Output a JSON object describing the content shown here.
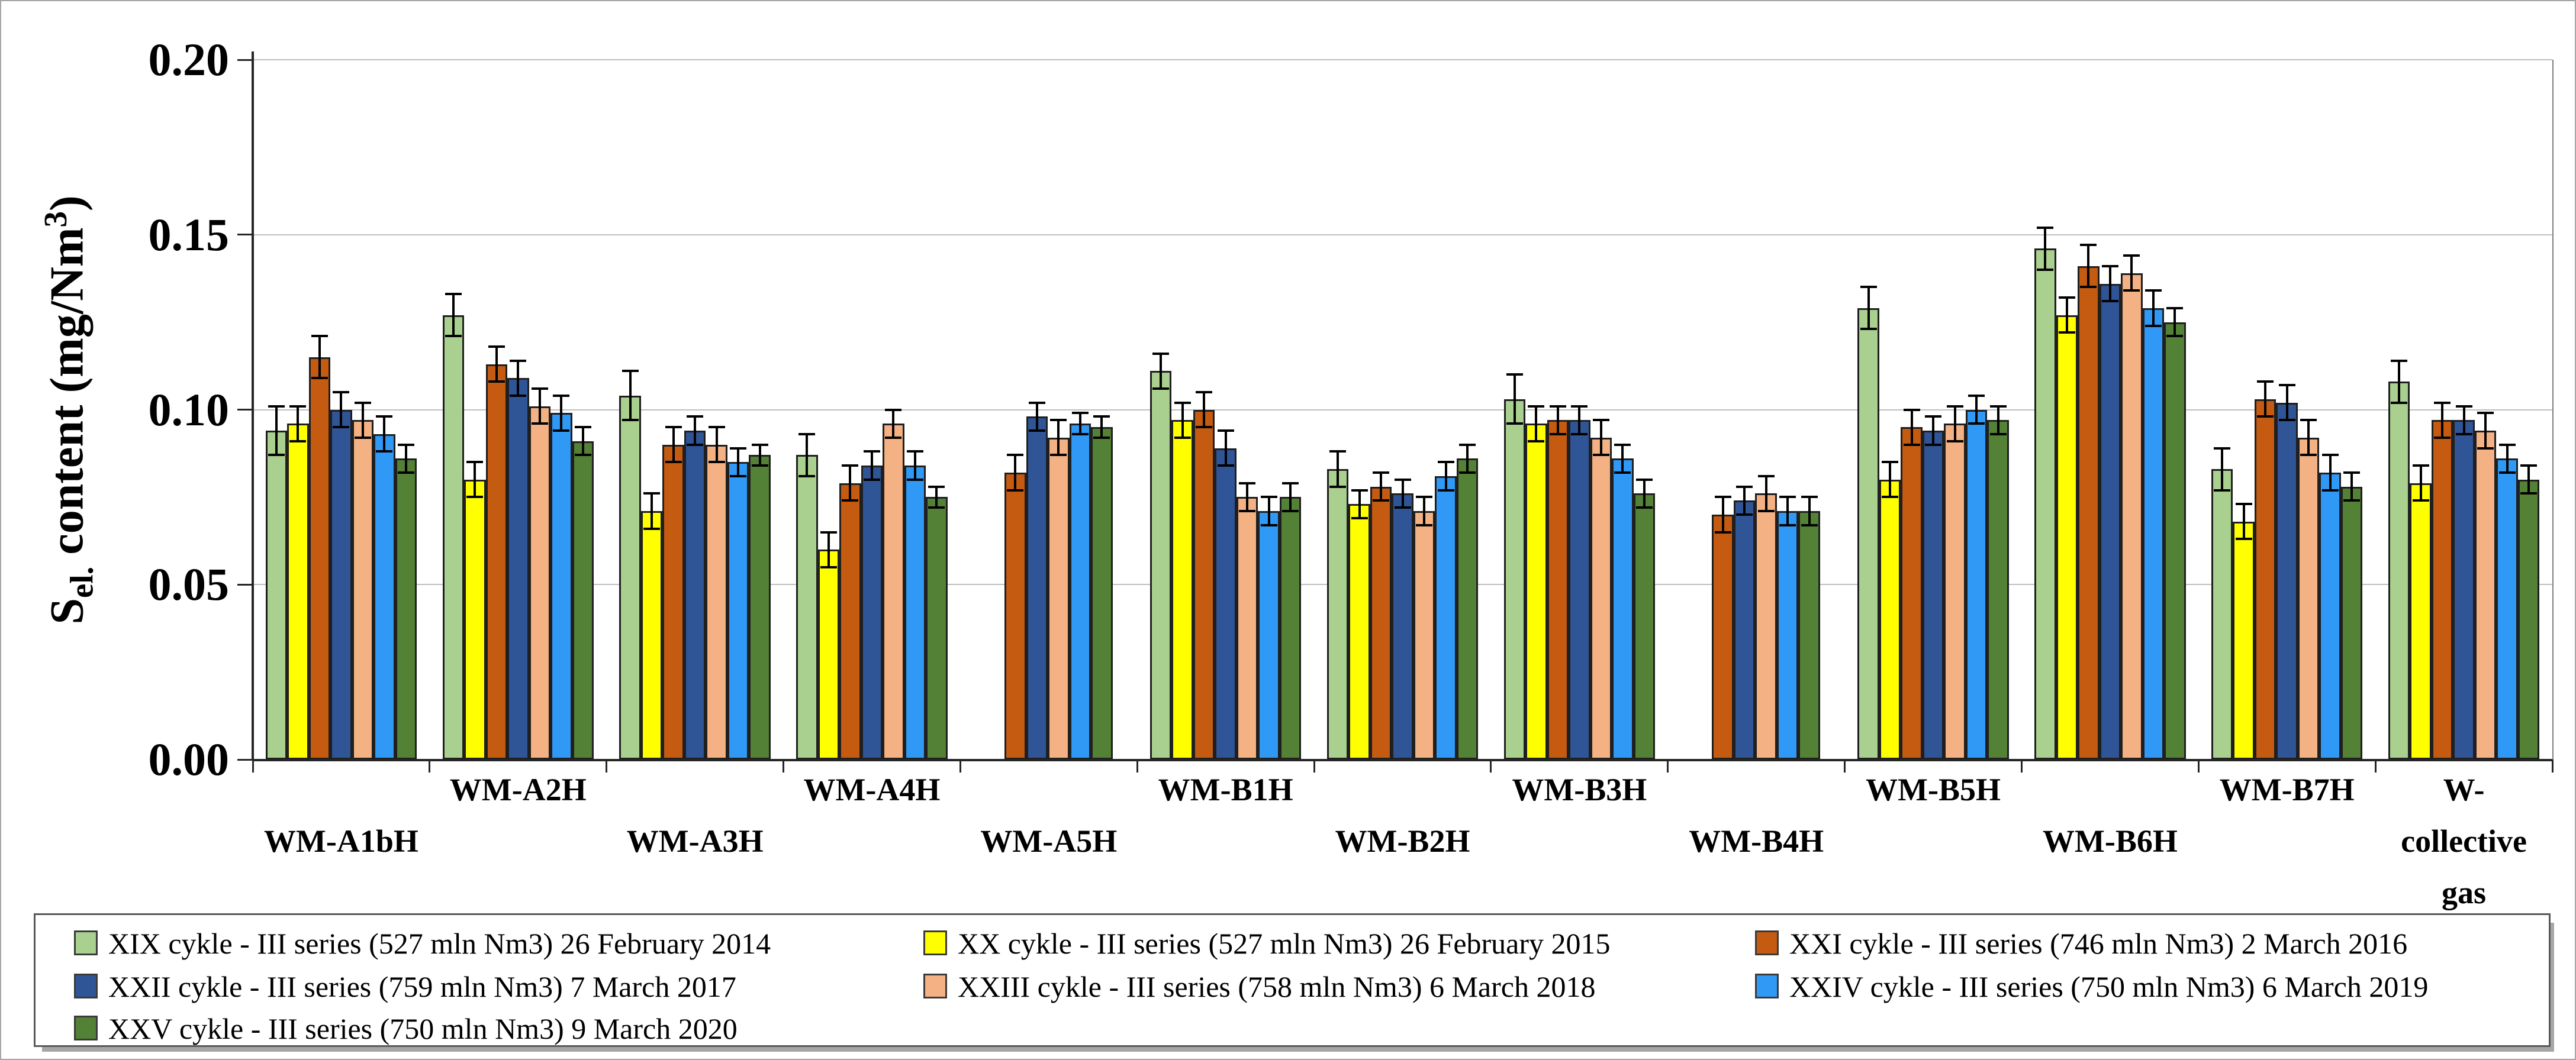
{
  "y_axis_title": {
    "s": "S",
    "sub": "el.",
    "mid": " content (mg/Nm",
    "sup": "3",
    "end": ")"
  },
  "chart_data": {
    "type": "bar",
    "title": "",
    "xlabel": "",
    "ylabel": "S el. content (mg/Nm3)",
    "ylim": [
      0,
      0.2
    ],
    "ytick_step": 0.05,
    "ytick_labels": [
      "0.00",
      "0.05",
      "0.10",
      "0.15",
      "0.20"
    ],
    "grid": true,
    "legend_position": "bottom",
    "error_bars": true,
    "categories": [
      {
        "lines": [
          "WM-A1bH"
        ],
        "row": 1
      },
      {
        "lines": [
          "WM-A2H"
        ],
        "row": 0
      },
      {
        "lines": [
          "WM-A3H"
        ],
        "row": 1
      },
      {
        "lines": [
          "WM-A4H"
        ],
        "row": 0
      },
      {
        "lines": [
          "WM-A5H"
        ],
        "row": 1
      },
      {
        "lines": [
          "WM-B1H"
        ],
        "row": 0
      },
      {
        "lines": [
          "WM-B2H"
        ],
        "row": 1
      },
      {
        "lines": [
          "WM-B3H"
        ],
        "row": 0
      },
      {
        "lines": [
          "WM-B4H"
        ],
        "row": 1
      },
      {
        "lines": [
          "WM-B5H"
        ],
        "row": 0
      },
      {
        "lines": [
          "WM-B6H"
        ],
        "row": 1
      },
      {
        "lines": [
          "WM-B7H"
        ],
        "row": 0
      },
      {
        "lines": [
          "W-",
          "collective",
          "gas"
        ],
        "row": 0
      }
    ],
    "series": [
      {
        "name": "XIX cykle - III series (527 mln Nm3) 26 February 2014",
        "color": "#A9D08E",
        "values": [
          0.094,
          0.127,
          0.104,
          0.087,
          null,
          0.111,
          0.083,
          0.103,
          null,
          0.129,
          0.146,
          0.083,
          0.108
        ],
        "errors": [
          0.007,
          0.006,
          0.007,
          0.006,
          null,
          0.005,
          0.005,
          0.007,
          null,
          0.006,
          0.006,
          0.006,
          0.006
        ]
      },
      {
        "name": "XX cykle - III series (527 mln Nm3) 26 February 2015",
        "color": "#FFFF00",
        "values": [
          0.096,
          0.08,
          0.071,
          0.06,
          null,
          0.097,
          0.073,
          0.096,
          null,
          0.08,
          0.127,
          0.068,
          0.079
        ],
        "errors": [
          0.005,
          0.005,
          0.005,
          0.005,
          null,
          0.005,
          0.004,
          0.005,
          null,
          0.005,
          0.005,
          0.005,
          0.005
        ]
      },
      {
        "name": "XXI cykle - III series (746 mln Nm3) 2 March 2016",
        "color": "#C55A11",
        "values": [
          0.115,
          0.113,
          0.09,
          0.079,
          0.082,
          0.1,
          0.078,
          0.097,
          0.07,
          0.095,
          0.141,
          0.103,
          0.097
        ],
        "errors": [
          0.006,
          0.005,
          0.005,
          0.005,
          0.005,
          0.005,
          0.004,
          0.004,
          0.005,
          0.005,
          0.006,
          0.005,
          0.005
        ]
      },
      {
        "name": "XXII cykle - III series (759 mln Nm3) 7 March 2017",
        "color": "#2F5597",
        "values": [
          0.1,
          0.109,
          0.094,
          0.084,
          0.098,
          0.089,
          0.076,
          0.097,
          0.074,
          0.094,
          0.136,
          0.102,
          0.097
        ],
        "errors": [
          0.005,
          0.005,
          0.004,
          0.004,
          0.004,
          0.005,
          0.004,
          0.004,
          0.004,
          0.004,
          0.005,
          0.005,
          0.004
        ]
      },
      {
        "name": "XXIII cykle - III series (758 mln Nm3) 6 March 2018",
        "color": "#F4B183",
        "values": [
          0.097,
          0.101,
          0.09,
          0.096,
          0.092,
          0.075,
          0.071,
          0.092,
          0.076,
          0.096,
          0.139,
          0.092,
          0.094
        ],
        "errors": [
          0.005,
          0.005,
          0.005,
          0.004,
          0.005,
          0.004,
          0.004,
          0.005,
          0.005,
          0.005,
          0.005,
          0.005,
          0.005
        ]
      },
      {
        "name": "XXIV cykle - III series (750 mln Nm3) 6 March 2019",
        "color": "#2F99F5",
        "values": [
          0.093,
          0.099,
          0.085,
          0.084,
          0.096,
          0.071,
          0.081,
          0.086,
          0.071,
          0.1,
          0.129,
          0.082,
          0.086
        ],
        "errors": [
          0.005,
          0.005,
          0.004,
          0.004,
          0.003,
          0.004,
          0.004,
          0.004,
          0.004,
          0.004,
          0.005,
          0.005,
          0.004
        ]
      },
      {
        "name": "XXV cykle - III series (750 mln Nm3) 9 March 2020",
        "color": "#538135",
        "values": [
          0.086,
          0.091,
          0.087,
          0.075,
          0.095,
          0.075,
          0.086,
          0.076,
          0.071,
          0.097,
          0.125,
          0.078,
          0.08
        ],
        "errors": [
          0.004,
          0.004,
          0.003,
          0.003,
          0.003,
          0.004,
          0.004,
          0.004,
          0.004,
          0.004,
          0.004,
          0.004,
          0.004
        ]
      }
    ]
  }
}
